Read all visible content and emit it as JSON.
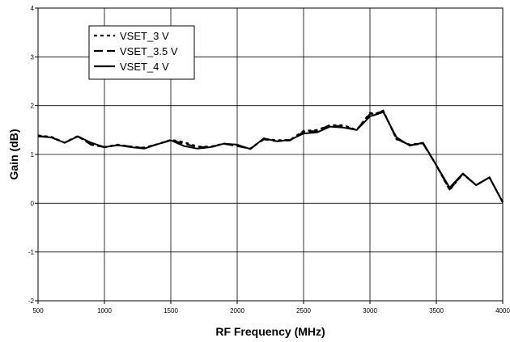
{
  "chart_data": {
    "type": "line",
    "xlabel": "RF Frequency (MHz)",
    "ylabel": "Gain (dB)",
    "xlim": [
      500,
      4000
    ],
    "ylim": [
      -2,
      4
    ],
    "xticks": [
      500,
      1000,
      1500,
      2000,
      2500,
      3000,
      3500,
      4000
    ],
    "yticks": [
      -2,
      -1,
      0,
      1,
      2,
      3,
      4
    ],
    "grid": true,
    "legend_position": "top-left",
    "series": [
      {
        "name": "VSET_3 V",
        "style": "dotted",
        "color": "#000000",
        "x": [
          500,
          600,
          700,
          800,
          900,
          1000,
          1100,
          1200,
          1300,
          1400,
          1500,
          1600,
          1700,
          1800,
          1900,
          2000,
          2100,
          2200,
          2300,
          2400,
          2500,
          2600,
          2700,
          2800,
          2900,
          3000,
          3050,
          3100,
          3200,
          3300,
          3400,
          3500,
          3600,
          3700,
          3800,
          3900,
          4000
        ],
        "y": [
          1.39,
          1.36,
          1.24,
          1.38,
          1.2,
          1.15,
          1.2,
          1.16,
          1.14,
          1.21,
          1.3,
          1.25,
          1.16,
          1.16,
          1.22,
          1.18,
          1.12,
          1.32,
          1.29,
          1.3,
          1.48,
          1.5,
          1.6,
          1.6,
          1.5,
          1.85,
          1.84,
          1.9,
          1.31,
          1.2,
          1.23,
          0.78,
          0.27,
          0.6,
          0.37,
          0.53,
          0.02
        ]
      },
      {
        "name": "VSET_3.5 V",
        "style": "dashed",
        "color": "#000000",
        "x": [
          500,
          600,
          700,
          800,
          900,
          1000,
          1100,
          1200,
          1300,
          1400,
          1500,
          1600,
          1700,
          1800,
          1900,
          2000,
          2100,
          2200,
          2300,
          2400,
          2500,
          2600,
          2700,
          2800,
          2900,
          3000,
          3050,
          3100,
          3200,
          3300,
          3400,
          3500,
          3600,
          3700,
          3800,
          3900,
          4000
        ],
        "y": [
          1.38,
          1.35,
          1.24,
          1.37,
          1.2,
          1.15,
          1.19,
          1.16,
          1.13,
          1.21,
          1.29,
          1.22,
          1.15,
          1.15,
          1.22,
          1.17,
          1.12,
          1.31,
          1.27,
          1.29,
          1.46,
          1.48,
          1.6,
          1.57,
          1.5,
          1.83,
          1.84,
          1.89,
          1.32,
          1.19,
          1.22,
          0.78,
          0.28,
          0.6,
          0.37,
          0.53,
          0.02
        ]
      },
      {
        "name": "VSET_4 V",
        "style": "solid",
        "color": "#000000",
        "x": [
          500,
          600,
          700,
          800,
          900,
          1000,
          1100,
          1200,
          1300,
          1400,
          1500,
          1600,
          1700,
          1800,
          1900,
          2000,
          2100,
          2200,
          2300,
          2400,
          2500,
          2600,
          2700,
          2800,
          2900,
          3000,
          3050,
          3100,
          3200,
          3300,
          3400,
          3500,
          3600,
          3700,
          3800,
          3900,
          4000
        ],
        "y": [
          1.37,
          1.35,
          1.24,
          1.37,
          1.24,
          1.15,
          1.19,
          1.15,
          1.12,
          1.21,
          1.29,
          1.17,
          1.12,
          1.15,
          1.22,
          1.2,
          1.11,
          1.33,
          1.27,
          1.3,
          1.43,
          1.45,
          1.57,
          1.55,
          1.5,
          1.78,
          1.82,
          1.87,
          1.35,
          1.18,
          1.24,
          0.78,
          0.32,
          0.61,
          0.37,
          0.53,
          0.02
        ]
      }
    ]
  }
}
